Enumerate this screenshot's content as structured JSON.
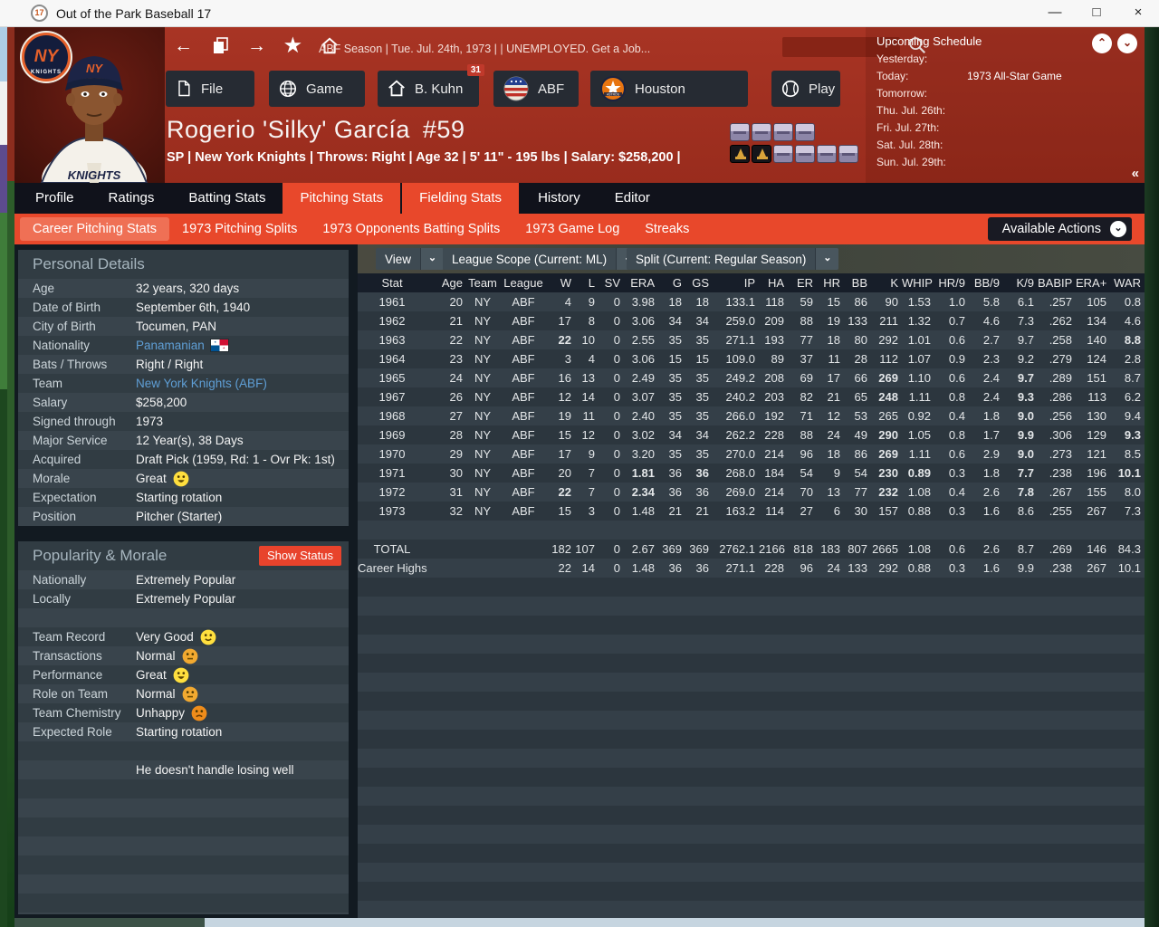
{
  "colors": {
    "accent": "#e8482b",
    "tab_dark": "#10121b",
    "link": "#5f9fd6",
    "hot_stat": "#e04b38",
    "panel": "#313c43",
    "header_red": "#a23120",
    "morale_yellow": "#ffdf3e",
    "morale_orange": "#f5a623"
  },
  "titlebar": {
    "icon": "17",
    "title": "Out of the Park Baseball 17",
    "controls": {
      "minimize": "—",
      "maximize": "□",
      "close": "×"
    }
  },
  "nav": {
    "breadcrumb": "ABF Season  |  Tue. Jul. 24th, 1973  |    |  UNEMPLOYED. Get a Job..."
  },
  "menu_buttons": [
    {
      "label": "File",
      "icon": "file"
    },
    {
      "label": "Game",
      "icon": "globe"
    },
    {
      "label": "B. Kuhn",
      "icon": "home",
      "badge": "31"
    },
    {
      "label": "ABF",
      "icon": "abf-logo"
    },
    {
      "label": "Houston",
      "icon": "astros-logo"
    },
    {
      "label": "Play",
      "icon": "baseball"
    }
  ],
  "schedule": {
    "title": "Upcoming Schedule",
    "rows": [
      {
        "label": "Yesterday:",
        "value": ""
      },
      {
        "label": "Today:",
        "value": "1973 All-Star Game"
      },
      {
        "label": "Tomorrow:",
        "value": ""
      },
      {
        "label": "Thu. Jul. 26th:",
        "value": ""
      },
      {
        "label": "Fri. Jul. 27th:",
        "value": ""
      },
      {
        "label": "Sat. Jul. 28th:",
        "value": ""
      },
      {
        "label": "Sun. Jul. 29th:",
        "value": ""
      }
    ]
  },
  "player": {
    "name": "Rogerio 'Silky' García",
    "number": "#59",
    "details": "SP | New York Knights  |  Throws: Right  |  Age 32  |  5' 11\" - 195 lbs  |  Salary: $258,200  |"
  },
  "awards": {
    "row1": [
      "badge",
      "badge",
      "badge",
      "badge"
    ],
    "row2": [
      "trophy",
      "trophy",
      "badge",
      "badge",
      "badge",
      "badge"
    ]
  },
  "tabs": [
    {
      "label": "Profile",
      "active": false
    },
    {
      "label": "Ratings",
      "active": false
    },
    {
      "label": "Batting Stats",
      "active": false
    },
    {
      "label": "Pitching Stats",
      "active": true
    },
    {
      "label": "Fielding Stats",
      "active": true
    },
    {
      "label": "History",
      "active": false
    },
    {
      "label": "Editor",
      "active": false
    }
  ],
  "subtabs": [
    {
      "label": "Career Pitching Stats",
      "active": true
    },
    {
      "label": "1973 Pitching Splits",
      "active": false
    },
    {
      "label": "1973 Opponents Batting Splits",
      "active": false
    },
    {
      "label": "1973 Game Log",
      "active": false
    },
    {
      "label": "Streaks",
      "active": false
    }
  ],
  "available_actions": "Available Actions",
  "personal_details": {
    "title": "Personal Details",
    "rows": [
      {
        "label": "Age",
        "value": "32 years, 320 days"
      },
      {
        "label": "Date of Birth",
        "value": "September 6th, 1940"
      },
      {
        "label": "City of Birth",
        "value": "Tocumen, PAN"
      },
      {
        "label": "Nationality",
        "value": "Panamanian",
        "link": true,
        "flag": "panama"
      },
      {
        "label": "Bats / Throws",
        "value": "Right / Right"
      },
      {
        "label": "Team",
        "value": "New York Knights (ABF)",
        "link": true
      },
      {
        "label": "Salary",
        "value": "$258,200"
      },
      {
        "label": "Signed through",
        "value": "1973"
      },
      {
        "label": "Major Service",
        "value": "12 Year(s), 38 Days"
      },
      {
        "label": "Acquired",
        "value": "Draft Pick (1959, Rd: 1 - Ovr Pk: 1st)"
      },
      {
        "label": "Morale",
        "value": "Great",
        "face": "great"
      },
      {
        "label": "Expectation",
        "value": "Starting rotation"
      },
      {
        "label": "Position",
        "value": "Pitcher (Starter)"
      }
    ]
  },
  "popularity": {
    "title": "Popularity & Morale",
    "show_status": "Show Status",
    "rows": [
      {
        "label": "Nationally",
        "value": "Extremely Popular"
      },
      {
        "label": "Locally",
        "value": "Extremely Popular"
      },
      {
        "label": "",
        "value": ""
      },
      {
        "label": "Team Record",
        "value": "Very Good",
        "face": "happy"
      },
      {
        "label": "Transactions",
        "value": "Normal",
        "face": "neutral"
      },
      {
        "label": "Performance",
        "value": "Great",
        "face": "great"
      },
      {
        "label": "Role on Team",
        "value": "Normal",
        "face": "neutral"
      },
      {
        "label": "Team Chemistry",
        "value": "Unhappy",
        "face": "unhappy"
      },
      {
        "label": "Expected Role",
        "value": "Starting rotation"
      },
      {
        "label": "",
        "value": ""
      },
      {
        "label": "",
        "value": "He doesn't handle losing well"
      }
    ]
  },
  "stats": {
    "controls": [
      "View",
      "League Scope  (Current: ML)",
      "Split  (Current: Regular Season)"
    ],
    "columns": [
      "Stat",
      "Age",
      "Team",
      "League",
      "W",
      "L",
      "SV",
      "ERA",
      "G",
      "GS",
      "IP",
      "HA",
      "ER",
      "HR",
      "BB",
      "K",
      "WHIP",
      "HR/9",
      "BB/9",
      "K/9",
      "BABIP",
      "ERA+",
      "WAR"
    ],
    "rows": [
      {
        "cells": [
          "1961",
          "20",
          "NY",
          "ABF",
          "4",
          "9",
          "0",
          "3.98",
          "18",
          "18",
          "133.1",
          "118",
          "59",
          "15",
          "86",
          "90",
          "1.53",
          "1.0",
          "5.8",
          "6.1",
          ".257",
          "105",
          "0.8"
        ],
        "hot": []
      },
      {
        "cells": [
          "1962",
          "21",
          "NY",
          "ABF",
          "17",
          "8",
          "0",
          "3.06",
          "34",
          "34",
          "259.0",
          "209",
          "88",
          "19",
          "133",
          "211",
          "1.32",
          "0.7",
          "4.6",
          "7.3",
          ".262",
          "134",
          "4.6"
        ],
        "hot": []
      },
      {
        "cells": [
          "1963",
          "22",
          "NY",
          "ABF",
          "22",
          "10",
          "0",
          "2.55",
          "35",
          "35",
          "271.1",
          "193",
          "77",
          "18",
          "80",
          "292",
          "1.01",
          "0.6",
          "2.7",
          "9.7",
          ".258",
          "140",
          "8.8"
        ],
        "hot": [
          4,
          22
        ]
      },
      {
        "cells": [
          "1964",
          "23",
          "NY",
          "ABF",
          "3",
          "4",
          "0",
          "3.06",
          "15",
          "15",
          "109.0",
          "89",
          "37",
          "11",
          "28",
          "112",
          "1.07",
          "0.9",
          "2.3",
          "9.2",
          ".279",
          "124",
          "2.8"
        ],
        "hot": []
      },
      {
        "cells": [
          "1965",
          "24",
          "NY",
          "ABF",
          "16",
          "13",
          "0",
          "2.49",
          "35",
          "35",
          "249.2",
          "208",
          "69",
          "17",
          "66",
          "269",
          "1.10",
          "0.6",
          "2.4",
          "9.7",
          ".289",
          "151",
          "8.7"
        ],
        "hot": [
          15,
          19
        ]
      },
      {
        "cells": [
          "1967",
          "26",
          "NY",
          "ABF",
          "12",
          "14",
          "0",
          "3.07",
          "35",
          "35",
          "240.2",
          "203",
          "82",
          "21",
          "65",
          "248",
          "1.11",
          "0.8",
          "2.4",
          "9.3",
          ".286",
          "113",
          "6.2"
        ],
        "hot": [
          15,
          19
        ]
      },
      {
        "cells": [
          "1968",
          "27",
          "NY",
          "ABF",
          "19",
          "11",
          "0",
          "2.40",
          "35",
          "35",
          "266.0",
          "192",
          "71",
          "12",
          "53",
          "265",
          "0.92",
          "0.4",
          "1.8",
          "9.0",
          ".256",
          "130",
          "9.4"
        ],
        "hot": [
          19
        ]
      },
      {
        "cells": [
          "1969",
          "28",
          "NY",
          "ABF",
          "15",
          "12",
          "0",
          "3.02",
          "34",
          "34",
          "262.2",
          "228",
          "88",
          "24",
          "49",
          "290",
          "1.05",
          "0.8",
          "1.7",
          "9.9",
          ".306",
          "129",
          "9.3"
        ],
        "hot": [
          15,
          19,
          22
        ]
      },
      {
        "cells": [
          "1970",
          "29",
          "NY",
          "ABF",
          "17",
          "9",
          "0",
          "3.20",
          "35",
          "35",
          "270.0",
          "214",
          "96",
          "18",
          "86",
          "269",
          "1.11",
          "0.6",
          "2.9",
          "9.0",
          ".273",
          "121",
          "8.5"
        ],
        "hot": [
          15,
          19
        ]
      },
      {
        "cells": [
          "1971",
          "30",
          "NY",
          "ABF",
          "20",
          "7",
          "0",
          "1.81",
          "36",
          "36",
          "268.0",
          "184",
          "54",
          "9",
          "54",
          "230",
          "0.89",
          "0.3",
          "1.8",
          "7.7",
          ".238",
          "196",
          "10.1"
        ],
        "hot": [
          7,
          9,
          15,
          16,
          19,
          22
        ]
      },
      {
        "cells": [
          "1972",
          "31",
          "NY",
          "ABF",
          "22",
          "7",
          "0",
          "2.34",
          "36",
          "36",
          "269.0",
          "214",
          "70",
          "13",
          "77",
          "232",
          "1.08",
          "0.4",
          "2.6",
          "7.8",
          ".267",
          "155",
          "8.0"
        ],
        "hot": [
          4,
          7,
          15,
          19
        ]
      },
      {
        "cells": [
          "1973",
          "32",
          "NY",
          "ABF",
          "15",
          "3",
          "0",
          "1.48",
          "21",
          "21",
          "163.2",
          "114",
          "27",
          "6",
          "30",
          "157",
          "0.88",
          "0.3",
          "1.6",
          "8.6",
          ".255",
          "267",
          "7.3"
        ],
        "hot": []
      },
      {
        "spacer": true
      },
      {
        "cells": [
          "TOTAL",
          "",
          "",
          "",
          "182",
          "107",
          "0",
          "2.67",
          "369",
          "369",
          "2762.1",
          "2166",
          "818",
          "183",
          "807",
          "2665",
          "1.08",
          "0.6",
          "2.6",
          "8.7",
          ".269",
          "146",
          "84.3"
        ],
        "hot": []
      },
      {
        "cells": [
          "Career Highs",
          "",
          "",
          "",
          "22",
          "14",
          "0",
          "1.48",
          "36",
          "36",
          "271.1",
          "228",
          "96",
          "24",
          "133",
          "292",
          "0.88",
          "0.3",
          "1.6",
          "9.9",
          ".238",
          "267",
          "10.1"
        ],
        "hot": []
      }
    ]
  }
}
